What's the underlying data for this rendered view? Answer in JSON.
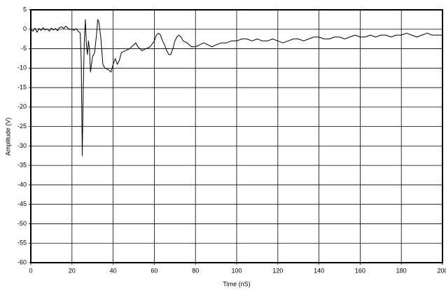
{
  "chart_data": {
    "type": "line",
    "x_label": "Time (nS)",
    "y_label": "Amplitude (V)",
    "x": [
      0,
      1,
      2,
      3,
      4,
      5,
      6,
      7,
      8,
      9,
      10,
      11,
      12,
      13,
      14,
      15,
      16,
      17,
      18,
      19,
      20,
      21,
      22,
      23,
      24,
      24.5,
      25,
      25.5,
      26,
      26.5,
      27,
      27.5,
      28,
      28.5,
      29,
      30,
      31,
      32,
      32.5,
      33,
      34,
      35,
      36,
      38,
      39,
      40,
      41,
      42,
      43,
      44,
      46,
      48,
      50,
      51,
      52,
      54,
      56,
      58,
      60,
      61,
      62,
      63,
      64,
      65,
      66,
      67,
      68,
      69,
      70,
      71,
      72,
      73,
      74,
      76,
      78,
      80,
      82,
      84,
      86,
      88,
      90,
      92.5,
      95,
      97.5,
      100,
      102.5,
      105,
      107.5,
      110,
      112.5,
      115,
      117.5,
      120,
      122.5,
      125,
      127.5,
      130,
      132.5,
      135,
      137.5,
      140,
      142.5,
      145,
      147.5,
      150,
      152.5,
      155,
      157.5,
      160,
      162.5,
      165,
      167.5,
      170,
      172.5,
      175,
      177.5,
      180,
      182.5,
      185,
      187.5,
      190,
      192.5,
      195,
      197.5,
      200
    ],
    "series": [
      {
        "name": null,
        "color": "#000000",
        "values": [
          0,
          -0.5,
          0.3,
          -0.8,
          0.2,
          -0.3,
          0.4,
          -0.2,
          0.1,
          -0.5,
          0.3,
          -0.2,
          0.2,
          -0.4,
          0.5,
          0.6,
          0.2,
          0.8,
          0.3,
          -0.1,
          0.1,
          -0.3,
          0.2,
          -0.5,
          -1,
          -8,
          -32.5,
          -15,
          -3,
          2.5,
          -4,
          -6.5,
          -3,
          -5,
          -11,
          -7,
          -6,
          -1,
          2.5,
          2,
          -2,
          -9,
          -10,
          -10.5,
          -11,
          -9,
          -7.5,
          -9,
          -8,
          -6,
          -5.5,
          -5,
          -4,
          -3.5,
          -4.5,
          -5.5,
          -5,
          -4.5,
          -3,
          -1.5,
          -1,
          -1.5,
          -3,
          -4,
          -5.5,
          -6.5,
          -6.5,
          -5,
          -3,
          -2,
          -1.5,
          -2,
          -3,
          -3.5,
          -4.5,
          -4.5,
          -4,
          -3.5,
          -4,
          -4.5,
          -4,
          -3.5,
          -3.5,
          -3,
          -3,
          -2.5,
          -2.5,
          -3,
          -2.5,
          -3,
          -3,
          -2.5,
          -3,
          -3.5,
          -3,
          -2.5,
          -2.5,
          -3,
          -2.5,
          -2,
          -2,
          -2.5,
          -2.5,
          -2,
          -2,
          -2.5,
          -2,
          -1.5,
          -2,
          -2,
          -1.5,
          -2,
          -1.5,
          -1.5,
          -2,
          -1.5,
          -1.5,
          -1,
          -1.5,
          -2,
          -1.5,
          -1,
          -1.5,
          -1.5,
          -1.5
        ]
      }
    ],
    "xlim": [
      0,
      200
    ],
    "xticks": [
      0,
      20,
      40,
      60,
      80,
      100,
      120,
      140,
      160,
      180,
      200
    ],
    "ylim": [
      -60,
      5
    ],
    "yticks": [
      5,
      0,
      -5,
      -10,
      -15,
      -20,
      -25,
      -30,
      -35,
      -40,
      -45,
      -50,
      -55,
      -60
    ],
    "grid": true
  }
}
